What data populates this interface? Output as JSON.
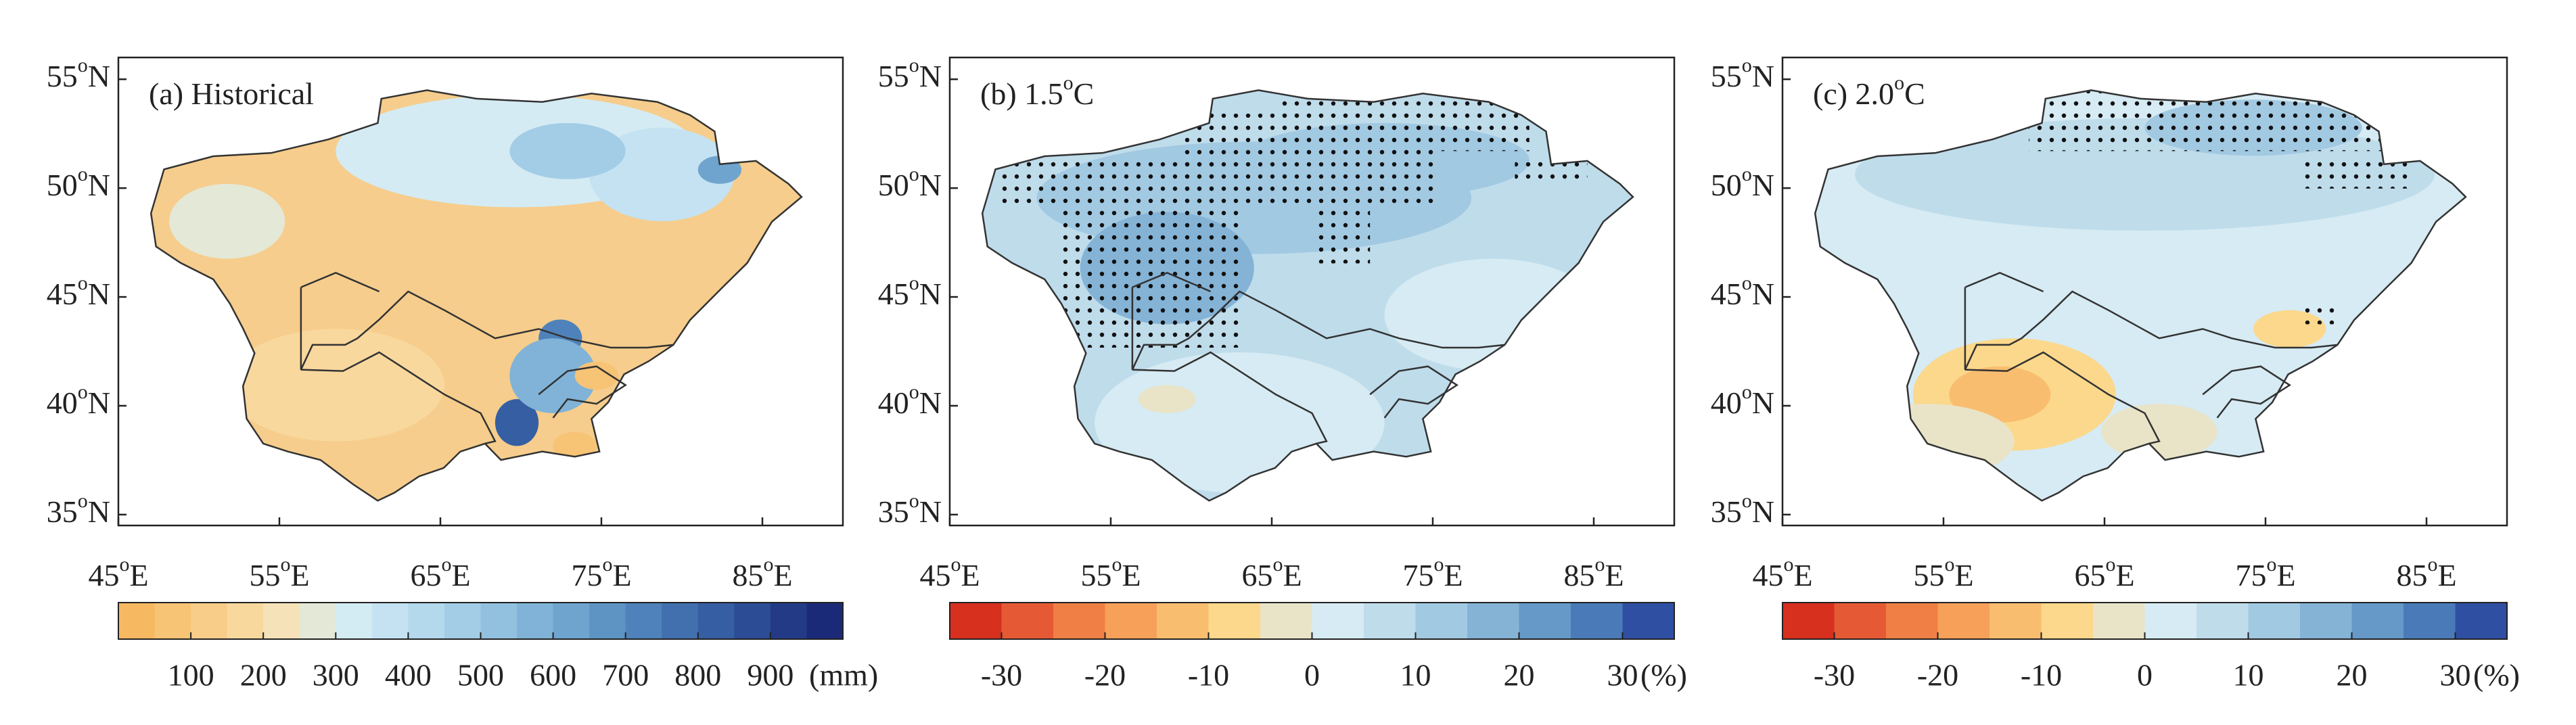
{
  "panels": [
    {
      "title": "(a) Historical",
      "colorbar": {
        "lim": [
          0,
          1000
        ],
        "ticks": [
          100,
          200,
          300,
          400,
          500,
          600,
          700,
          800,
          900
        ],
        "unit": "(mm)",
        "colors": [
          "#f6b861",
          "#f7c375",
          "#f8cd8a",
          "#f9d89e",
          "#f5e2b8",
          "#e4e8d7",
          "#d3ebf3",
          "#c4e2f1",
          "#b4d8ec",
          "#a3cde6",
          "#92c1df",
          "#80b3d7",
          "#6fa4ce",
          "#5e94c4",
          "#4f82ba",
          "#4270ae",
          "#365ea2",
          "#2c4c95",
          "#233b87",
          "#1b2a78"
        ]
      }
    },
    {
      "title": "(b) 1.5",
      "title_sup": "o",
      "title_suffix": "C",
      "colorbar": {
        "lim": [
          -35,
          35
        ],
        "ticks": [
          -30,
          -20,
          -10,
          0,
          10,
          20,
          30
        ],
        "unit": "(%)",
        "colors": [
          "#d7301f",
          "#e55a34",
          "#f07f45",
          "#f6a05a",
          "#f9bd6f",
          "#fbd88b",
          "#e9e4c8",
          "#d6ebf3",
          "#bfdceb",
          "#a2c9e2",
          "#84b3d6",
          "#6698c8",
          "#4a7bb8",
          "#2f4fa2"
        ]
      }
    },
    {
      "title": "(c) 2.0",
      "title_sup": "o",
      "title_suffix": "C",
      "colorbar": {
        "lim": [
          -35,
          35
        ],
        "ticks": [
          -30,
          -20,
          -10,
          0,
          10,
          20,
          30
        ],
        "unit": "(%)",
        "colors": [
          "#d7301f",
          "#e55a34",
          "#f07f45",
          "#f6a05a",
          "#f9bd6f",
          "#fbd88b",
          "#e9e4c8",
          "#d6ebf3",
          "#bfdceb",
          "#a2c9e2",
          "#84b3d6",
          "#6698c8",
          "#4a7bb8",
          "#2f4fa2"
        ]
      }
    }
  ],
  "xlim": [
    45,
    90
  ],
  "xticks": [
    45,
    55,
    65,
    75,
    85
  ],
  "x_suffix": "E",
  "ylim": [
    34.5,
    56
  ],
  "yticks": [
    35,
    40,
    45,
    50,
    55
  ],
  "y_suffix": "N",
  "degree": "o"
}
